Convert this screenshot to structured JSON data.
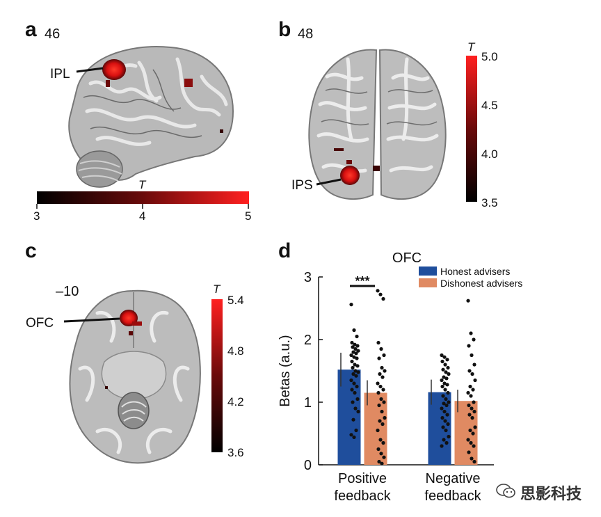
{
  "panels": {
    "a": {
      "label": "a",
      "slice": "46",
      "roi": "IPL"
    },
    "b": {
      "label": "b",
      "slice": "48",
      "roi": "IPS"
    },
    "c": {
      "label": "c",
      "slice": "–10",
      "roi": "OFC"
    },
    "d": {
      "label": "d"
    }
  },
  "colorbars": {
    "a": {
      "symbol": "T",
      "ticks": [
        "3",
        "4",
        "5"
      ]
    },
    "b": {
      "symbol": "T",
      "ticks": [
        "5.0",
        "4.5",
        "4.0",
        "3.5"
      ]
    },
    "c": {
      "symbol": "T",
      "ticks": [
        "5.4",
        "4.8",
        "4.2",
        "3.6"
      ]
    }
  },
  "colors": {
    "honest": "#1f4e9c",
    "dishonest": "#e08a62",
    "activation": "#e81a1a",
    "colorbar_low": "#000000",
    "colorbar_high": "#ff2020"
  },
  "chart_data": {
    "type": "bar",
    "title": "OFC",
    "ylabel": "Betas (a.u.)",
    "ylim": [
      0,
      3
    ],
    "yticks": [
      "0",
      "1",
      "2",
      "3"
    ],
    "categories": [
      "Positive feedback",
      "Negative feedback"
    ],
    "category_lines": [
      [
        "Positive",
        "feedback"
      ],
      [
        "Negative",
        "feedback"
      ]
    ],
    "series": [
      {
        "name": "Honest advisers",
        "values": [
          1.52,
          1.16
        ],
        "errors": [
          0.27,
          0.2
        ]
      },
      {
        "name": "Dishonest advisers",
        "values": [
          1.15,
          1.02
        ],
        "errors": [
          0.2,
          0.18
        ]
      }
    ],
    "significance": {
      "label": "***",
      "category": "Positive feedback"
    },
    "legend": "top-right",
    "points": [
      [
        [
          2.56,
          2.15,
          2.05,
          1.95,
          1.92,
          1.9,
          1.88,
          1.85,
          1.82,
          1.8,
          1.78,
          1.75,
          1.72,
          1.7,
          1.65,
          1.6,
          1.58,
          1.55,
          1.5,
          1.48,
          1.45,
          1.42,
          1.35,
          1.3,
          1.25,
          1.2,
          1.15,
          1.05,
          1.0,
          0.9,
          0.85,
          0.72,
          0.55,
          0.48,
          0.44
        ],
        [
          2.78,
          2.72,
          2.65,
          1.95,
          1.85,
          1.75,
          1.7,
          1.55,
          1.5,
          1.45,
          1.4,
          1.3,
          1.25,
          1.2,
          1.15,
          1.05,
          1.0,
          0.95,
          0.85,
          0.75,
          0.7,
          0.65,
          0.55,
          0.4,
          0.35,
          0.25,
          0.18,
          0.12,
          0.05,
          0.02
        ]
      ],
      [
        [
          1.75,
          1.72,
          1.68,
          1.65,
          1.6,
          1.55,
          1.52,
          1.48,
          1.45,
          1.4,
          1.38,
          1.35,
          1.3,
          1.28,
          1.25,
          1.2,
          1.15,
          1.1,
          1.05,
          1.0,
          0.98,
          0.95,
          0.9,
          0.85,
          0.8,
          0.75,
          0.7,
          0.65,
          0.6,
          0.55,
          0.45,
          0.4,
          0.35,
          0.3
        ],
        [
          2.62,
          2.1,
          2.0,
          1.9,
          1.75,
          1.6,
          1.5,
          1.45,
          1.35,
          1.25,
          1.2,
          1.15,
          1.1,
          1.0,
          0.95,
          0.9,
          0.85,
          0.8,
          0.75,
          0.6,
          0.55,
          0.5,
          0.4,
          0.35,
          0.3,
          0.2,
          0.1,
          0.05
        ]
      ]
    ]
  },
  "watermark": "思影科技"
}
